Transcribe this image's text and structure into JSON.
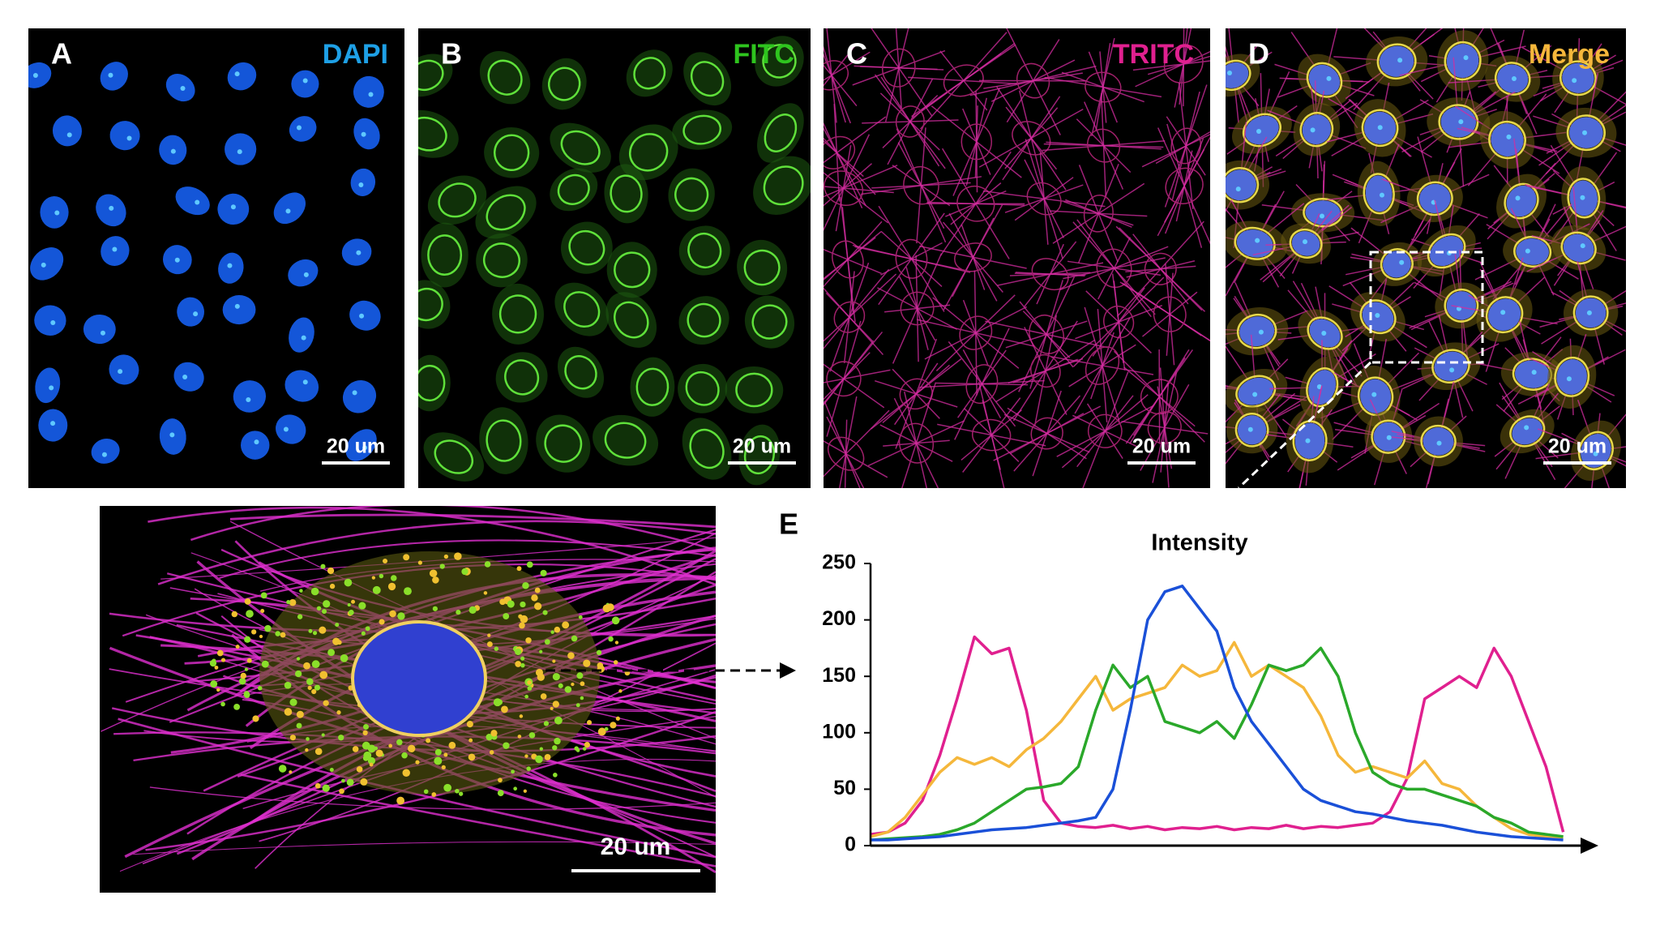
{
  "panels": [
    {
      "label": "A",
      "channel": "DAPI",
      "color": "#1ea0e6",
      "scale_bar": "20 um"
    },
    {
      "label": "B",
      "channel": "FITC",
      "color": "#2ec41e",
      "scale_bar": "20 um"
    },
    {
      "label": "C",
      "channel": "TRITC",
      "color": "#e0208f",
      "scale_bar": "20 um"
    },
    {
      "label": "D",
      "channel": "Merge",
      "color": "#f5b73b",
      "scale_bar": "20 um"
    }
  ],
  "zoom": {
    "scale_bar": "20 um"
  },
  "chart_data": {
    "type": "line",
    "label": "E",
    "title": "Intensity",
    "x": [
      0,
      1,
      2,
      3,
      4,
      5,
      6,
      7,
      8,
      9,
      10,
      11,
      12,
      13,
      14,
      15,
      16,
      17,
      18,
      19,
      20,
      21,
      22,
      23,
      24,
      25,
      26,
      27,
      28,
      29,
      30,
      31,
      32,
      33,
      34,
      35,
      36,
      37,
      38,
      39,
      40
    ],
    "xlim": [
      0,
      41
    ],
    "ylim": [
      0,
      250
    ],
    "yticks": [
      0,
      50,
      100,
      150,
      200,
      250
    ],
    "series": [
      {
        "color": "#e0208f",
        "values": [
          10,
          12,
          20,
          40,
          80,
          130,
          185,
          170,
          175,
          120,
          40,
          20,
          17,
          16,
          18,
          15,
          17,
          14,
          16,
          15,
          17,
          14,
          16,
          15,
          18,
          15,
          17,
          16,
          18,
          20,
          30,
          60,
          130,
          140,
          150,
          140,
          175,
          150,
          110,
          70,
          12
        ]
      },
      {
        "color": "#f5b73b",
        "values": [
          8,
          12,
          25,
          45,
          65,
          78,
          72,
          78,
          70,
          85,
          95,
          110,
          130,
          150,
          120,
          130,
          135,
          140,
          160,
          150,
          155,
          180,
          150,
          160,
          150,
          140,
          115,
          80,
          65,
          70,
          65,
          60,
          75,
          55,
          50,
          35,
          25,
          15,
          10,
          8,
          7
        ]
      },
      {
        "color": "#2aa82a",
        "values": [
          5,
          6,
          7,
          8,
          10,
          14,
          20,
          30,
          40,
          50,
          52,
          55,
          70,
          120,
          160,
          140,
          150,
          110,
          105,
          100,
          110,
          95,
          125,
          160,
          155,
          160,
          175,
          150,
          100,
          65,
          55,
          50,
          50,
          45,
          40,
          35,
          25,
          20,
          12,
          10,
          8
        ]
      },
      {
        "color": "#1a50d8",
        "values": [
          5,
          5,
          6,
          7,
          8,
          10,
          12,
          14,
          15,
          16,
          18,
          20,
          22,
          25,
          50,
          120,
          200,
          225,
          230,
          210,
          190,
          140,
          110,
          90,
          70,
          50,
          40,
          35,
          30,
          28,
          25,
          22,
          20,
          18,
          15,
          12,
          10,
          8,
          7,
          6,
          5
        ]
      }
    ]
  }
}
